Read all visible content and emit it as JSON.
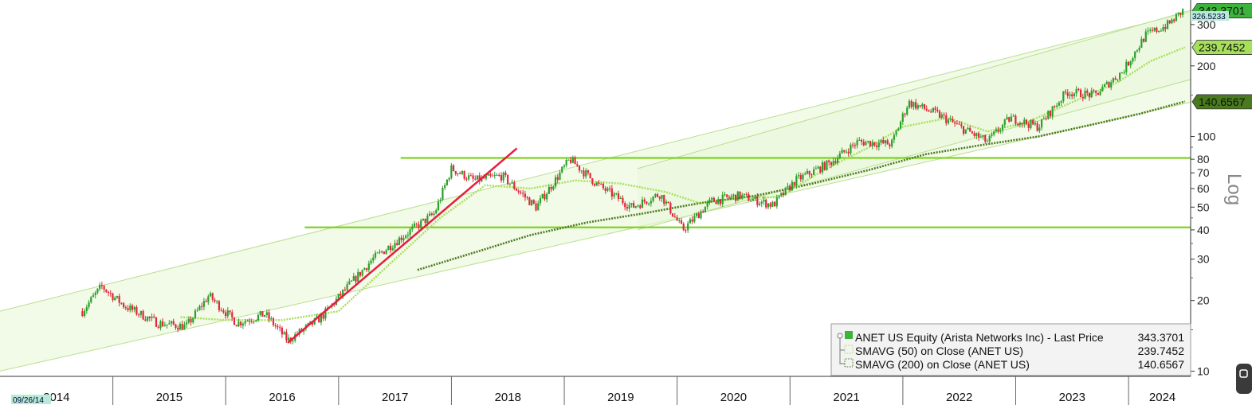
{
  "chart_data": {
    "type": "candlestick",
    "yscale": "log",
    "ylim": [
      9.5,
      370
    ],
    "xlim": [
      2014.0,
      2024.55
    ],
    "scale_label": "Log",
    "y_ticks": [
      {
        "value": 10,
        "label": "10"
      },
      {
        "value": 20,
        "label": "20"
      },
      {
        "value": 30,
        "label": "30"
      },
      {
        "value": 40,
        "label": "40"
      },
      {
        "value": 50,
        "label": "50"
      },
      {
        "value": 60,
        "label": "60"
      },
      {
        "value": 70,
        "label": "70"
      },
      {
        "value": 80,
        "label": "80"
      },
      {
        "value": 100,
        "label": "100"
      },
      {
        "value": 200,
        "label": "200"
      },
      {
        "value": 300,
        "label": "300"
      }
    ],
    "x_ticks": [
      {
        "value": 2014.5,
        "label": "2014"
      },
      {
        "value": 2015.5,
        "label": "2015"
      },
      {
        "value": 2016.5,
        "label": "2016"
      },
      {
        "value": 2017.5,
        "label": "2017"
      },
      {
        "value": 2018.5,
        "label": "2018"
      },
      {
        "value": 2019.5,
        "label": "2019"
      },
      {
        "value": 2020.5,
        "label": "2020"
      },
      {
        "value": 2021.5,
        "label": "2021"
      },
      {
        "value": 2022.5,
        "label": "2022"
      },
      {
        "value": 2023.5,
        "label": "2023"
      },
      {
        "value": 2024.3,
        "label": "2024"
      }
    ],
    "start_date_label": "09/26/14",
    "legend": {
      "placement": "bottom-right",
      "entries": [
        {
          "name": "ANET US Equity (Arista Networks Inc) - Last Price",
          "value": "343.3701",
          "color": "#3cb43c"
        },
        {
          "name": "SMAVG (50)  on Close (ANET US)",
          "value": "239.7452",
          "color": "#a6e05a"
        },
        {
          "name": "SMAVG (200)  on Close (ANET US)",
          "value": "140.6567",
          "color": "#4a7a1e"
        }
      ]
    },
    "price_tags": [
      {
        "label": "343.3701",
        "value": 343.3701,
        "color": "#3cb43c"
      },
      {
        "label": "326.5233",
        "value": 326.5233,
        "color": "#b8ead8"
      },
      {
        "label": "239.7452",
        "value": 239.7452,
        "color": "#a6e05a"
      },
      {
        "label": "140.6567",
        "value": 140.6567,
        "color": "#4a7a1e"
      }
    ],
    "key_points": [
      [
        2014.73,
        18
      ],
      [
        2014.9,
        23
      ],
      [
        2015.1,
        19
      ],
      [
        2015.4,
        16
      ],
      [
        2015.65,
        15.5
      ],
      [
        2015.85,
        21
      ],
      [
        2016.1,
        16
      ],
      [
        2016.35,
        17.5
      ],
      [
        2016.55,
        13.5
      ],
      [
        2016.85,
        17
      ],
      [
        2017.05,
        22
      ],
      [
        2017.3,
        30
      ],
      [
        2017.55,
        37
      ],
      [
        2017.85,
        47
      ],
      [
        2018.0,
        73
      ],
      [
        2018.2,
        65
      ],
      [
        2018.45,
        68
      ],
      [
        2018.75,
        50
      ],
      [
        2019.05,
        80
      ],
      [
        2019.3,
        62
      ],
      [
        2019.6,
        50
      ],
      [
        2019.85,
        57
      ],
      [
        2020.05,
        40
      ],
      [
        2020.3,
        53
      ],
      [
        2020.55,
        56
      ],
      [
        2020.85,
        51
      ],
      [
        2021.05,
        65
      ],
      [
        2021.35,
        77
      ],
      [
        2021.6,
        95
      ],
      [
        2021.9,
        93
      ],
      [
        2022.05,
        140
      ],
      [
        2022.3,
        125
      ],
      [
        2022.5,
        110
      ],
      [
        2022.75,
        95
      ],
      [
        2022.95,
        120
      ],
      [
        2023.2,
        110
      ],
      [
        2023.45,
        155
      ],
      [
        2023.7,
        150
      ],
      [
        2023.95,
        190
      ],
      [
        2024.15,
        270
      ],
      [
        2024.35,
        300
      ],
      [
        2024.48,
        343
      ]
    ],
    "sma50_points": [
      [
        2015.6,
        17
      ],
      [
        2016.0,
        16.5
      ],
      [
        2016.5,
        16.5
      ],
      [
        2017.0,
        18
      ],
      [
        2017.5,
        30
      ],
      [
        2017.9,
        45
      ],
      [
        2018.3,
        62
      ],
      [
        2018.7,
        60
      ],
      [
        2019.1,
        65
      ],
      [
        2019.5,
        63
      ],
      [
        2019.9,
        58
      ],
      [
        2020.2,
        52
      ],
      [
        2020.6,
        55
      ],
      [
        2020.9,
        55
      ],
      [
        2021.3,
        72
      ],
      [
        2021.7,
        90
      ],
      [
        2022.0,
        110
      ],
      [
        2022.4,
        120
      ],
      [
        2022.75,
        105
      ],
      [
        2023.1,
        115
      ],
      [
        2023.5,
        140
      ],
      [
        2023.9,
        170
      ],
      [
        2024.2,
        210
      ],
      [
        2024.5,
        240
      ]
    ],
    "sma200_points": [
      [
        2017.7,
        27
      ],
      [
        2018.2,
        32
      ],
      [
        2018.7,
        38
      ],
      [
        2019.2,
        43
      ],
      [
        2019.7,
        47
      ],
      [
        2020.2,
        52
      ],
      [
        2020.7,
        56
      ],
      [
        2021.2,
        63
      ],
      [
        2021.7,
        72
      ],
      [
        2022.2,
        84
      ],
      [
        2022.7,
        92
      ],
      [
        2023.2,
        100
      ],
      [
        2023.7,
        113
      ],
      [
        2024.1,
        125
      ],
      [
        2024.5,
        141
      ]
    ],
    "horizontal_levels": [
      {
        "value": 81,
        "x_start": 2017.55,
        "x_end": 2024.55
      },
      {
        "value": 41,
        "x_start": 2016.7,
        "x_end": 2024.55
      }
    ],
    "trendline": {
      "from": [
        2016.55,
        13.2
      ],
      "to": [
        2018.58,
        89
      ]
    },
    "channels": [
      {
        "lower": [
          [
            2014.0,
            10
          ],
          [
            2024.55,
            140
          ]
        ],
        "upper": [
          [
            2014.0,
            18
          ],
          [
            2024.55,
            340
          ]
        ]
      },
      {
        "lower": [
          [
            2019.65,
            40
          ],
          [
            2024.55,
            175
          ]
        ],
        "upper": [
          [
            2019.65,
            73
          ],
          [
            2024.55,
            345
          ]
        ]
      }
    ],
    "colors": {
      "up": "#2ca02c",
      "down": "#e0283c",
      "trendline": "#e81c3c",
      "level": "#7ed321",
      "channel_fill": "#eaf6d8",
      "channel_line": "#b8e08e"
    }
  }
}
